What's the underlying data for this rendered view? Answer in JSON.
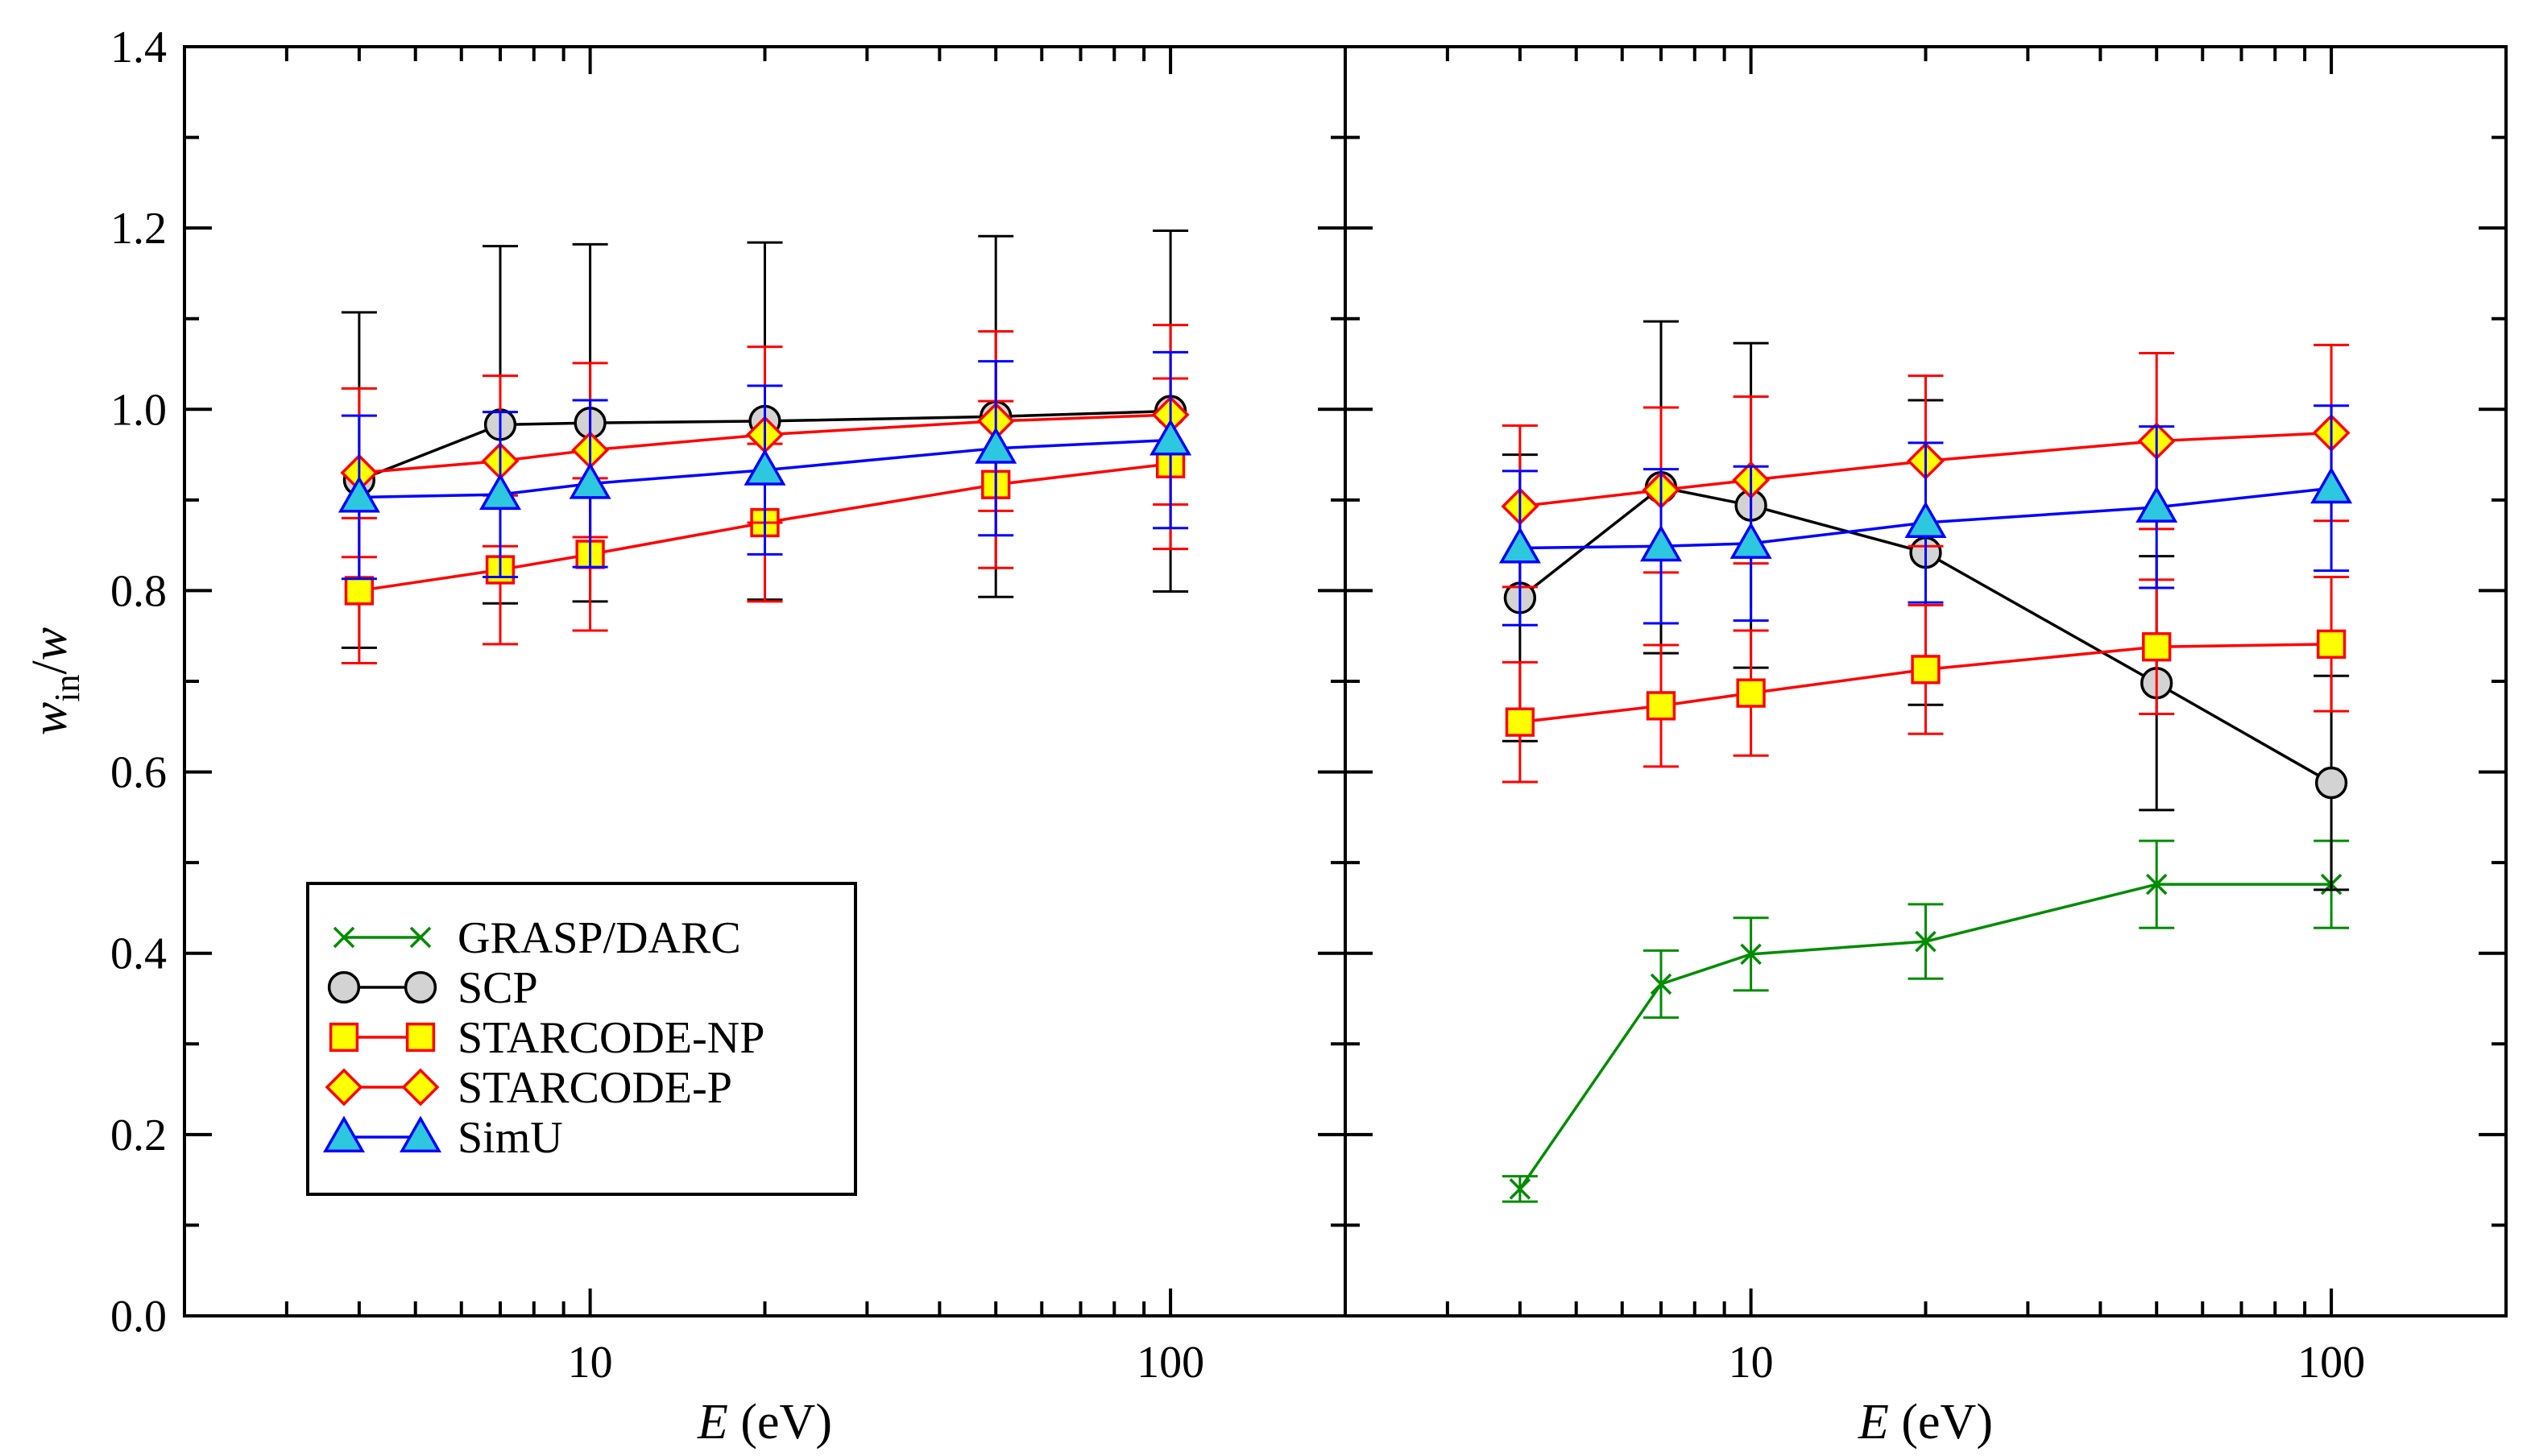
{
  "chart_data": {
    "type": "line",
    "xscale": "log",
    "xlim": [
      2,
      200
    ],
    "ylim": [
      0.0,
      1.4
    ],
    "yticks": [
      0.0,
      0.2,
      0.4,
      0.6,
      0.8,
      1.0,
      1.2,
      1.4
    ],
    "ytick_labels": [
      "0.0",
      "0.2",
      "0.4",
      "0.6",
      "0.8",
      "1.0",
      "1.2",
      "1.4"
    ],
    "xticks": [
      10,
      100
    ],
    "xtick_labels": [
      "10",
      "100"
    ],
    "ylabel": {
      "main": "w",
      "sub": "in",
      "slash": "/",
      "denom": "w"
    },
    "xlabel": {
      "var": "E",
      "unit": " (eV)"
    },
    "legend": [
      "GRASP/DARC",
      "SCP",
      "STARCODE-NP",
      "STARCODE-P",
      "SimU"
    ],
    "legend_position": "lower-left",
    "colors": {
      "green": "#008c00",
      "black": "#000000",
      "red": "#ff0000",
      "blue": "#0000ff",
      "gray_fill": "#d3d3d3",
      "yellow_fill": "#ffff00",
      "cyan_fill": "#2ec7e0"
    },
    "panels": [
      {
        "name": "left",
        "series": [
          {
            "name": "SCP",
            "marker": "circle",
            "line": "#000000",
            "fill": "#d3d3d3",
            "x": [
              4,
              7,
              10,
              20,
              50,
              100
            ],
            "y": [
              0.922,
              0.983,
              0.985,
              0.987,
              0.992,
              0.998
            ],
            "yerr": [
              0.185,
              0.197,
              0.197,
              0.197,
              0.199,
              0.199
            ]
          },
          {
            "name": "STARCODE-NP",
            "marker": "square",
            "line": "#ff0000",
            "fill": "#ffff00",
            "x": [
              4,
              7,
              10,
              20,
              50,
              100
            ],
            "y": [
              0.8,
              0.823,
              0.84,
              0.875,
              0.917,
              0.94
            ],
            "yerr": [
              0.08,
              0.082,
              0.084,
              0.087,
              0.092,
              0.094
            ]
          },
          {
            "name": "STARCODE-P",
            "marker": "diamond",
            "line": "#ff0000",
            "fill": "#ffff00",
            "x": [
              4,
              7,
              10,
              20,
              50,
              100
            ],
            "y": [
              0.93,
              0.943,
              0.955,
              0.972,
              0.987,
              0.994
            ],
            "yerr": [
              0.093,
              0.094,
              0.096,
              0.097,
              0.099,
              0.099
            ]
          },
          {
            "name": "SimU",
            "marker": "triangle",
            "line": "#0000ff",
            "fill": "#2ec7e0",
            "x": [
              4,
              7,
              10,
              20,
              50,
              100
            ],
            "y": [
              0.903,
              0.906,
              0.918,
              0.933,
              0.957,
              0.966
            ],
            "yerr": [
              0.09,
              0.091,
              0.092,
              0.093,
              0.096,
              0.097
            ]
          }
        ]
      },
      {
        "name": "right",
        "series": [
          {
            "name": "GRASP/DARC",
            "marker": "x",
            "line": "#008c00",
            "fill": "none",
            "x": [
              4,
              7,
              10,
              20,
              50,
              100
            ],
            "y": [
              0.14,
              0.366,
              0.399,
              0.413,
              0.476,
              0.476
            ],
            "yerr": [
              0.014,
              0.037,
              0.04,
              0.041,
              0.048,
              0.048
            ]
          },
          {
            "name": "SCP",
            "marker": "circle",
            "line": "#000000",
            "fill": "#d3d3d3",
            "x": [
              4,
              7,
              10,
              20,
              50,
              100
            ],
            "y": [
              0.792,
              0.914,
              0.894,
              0.842,
              0.698,
              0.588
            ],
            "yerr": [
              0.158,
              0.183,
              0.179,
              0.168,
              0.14,
              0.118
            ]
          },
          {
            "name": "STARCODE-NP",
            "marker": "square",
            "line": "#ff0000",
            "fill": "#ffff00",
            "x": [
              4,
              7,
              10,
              20,
              50,
              100
            ],
            "y": [
              0.655,
              0.673,
              0.687,
              0.713,
              0.738,
              0.741
            ],
            "yerr": [
              0.066,
              0.067,
              0.069,
              0.071,
              0.074,
              0.074
            ]
          },
          {
            "name": "STARCODE-P",
            "marker": "diamond",
            "line": "#ff0000",
            "fill": "#ffff00",
            "x": [
              4,
              7,
              10,
              20,
              50,
              100
            ],
            "y": [
              0.893,
              0.911,
              0.922,
              0.943,
              0.965,
              0.974
            ],
            "yerr": [
              0.089,
              0.091,
              0.092,
              0.094,
              0.097,
              0.097
            ]
          },
          {
            "name": "SimU",
            "marker": "triangle",
            "line": "#0000ff",
            "fill": "#2ec7e0",
            "x": [
              4,
              7,
              10,
              20,
              50,
              100
            ],
            "y": [
              0.847,
              0.849,
              0.852,
              0.875,
              0.892,
              0.913
            ],
            "yerr": [
              0.085,
              0.085,
              0.085,
              0.088,
              0.089,
              0.091
            ]
          }
        ]
      }
    ]
  }
}
